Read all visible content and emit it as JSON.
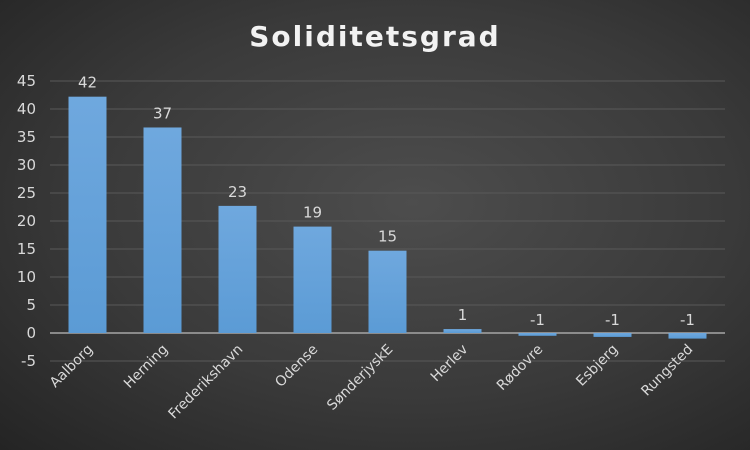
{
  "chart_data": {
    "type": "bar",
    "title": "Soliditetsgrad",
    "categories": [
      "Aalborg",
      "Herning",
      "Frederikshavn",
      "Odense",
      "SønderjyskE",
      "Herlev",
      "Rødovre",
      "Esbjerg",
      "Rungsted"
    ],
    "values": [
      42.2,
      36.7,
      22.7,
      19,
      14.7,
      0.7,
      -0.5,
      -0.7,
      -1
    ],
    "data_labels": [
      "42",
      "37",
      "23",
      "19",
      "15",
      "1",
      "-1",
      "-1",
      "-1"
    ],
    "ylim": [
      -5,
      45
    ],
    "yticks": [
      "-5",
      "0",
      "5",
      "10",
      "15",
      "20",
      "25",
      "30",
      "35",
      "40",
      "45"
    ],
    "grid": true,
    "legend": "none",
    "colors": {
      "bar": "#5b9bd5",
      "bar_top": "#6fa8de",
      "text": "#d9d9d9",
      "grid": "#595959",
      "axis": "#a6a6a6"
    }
  }
}
